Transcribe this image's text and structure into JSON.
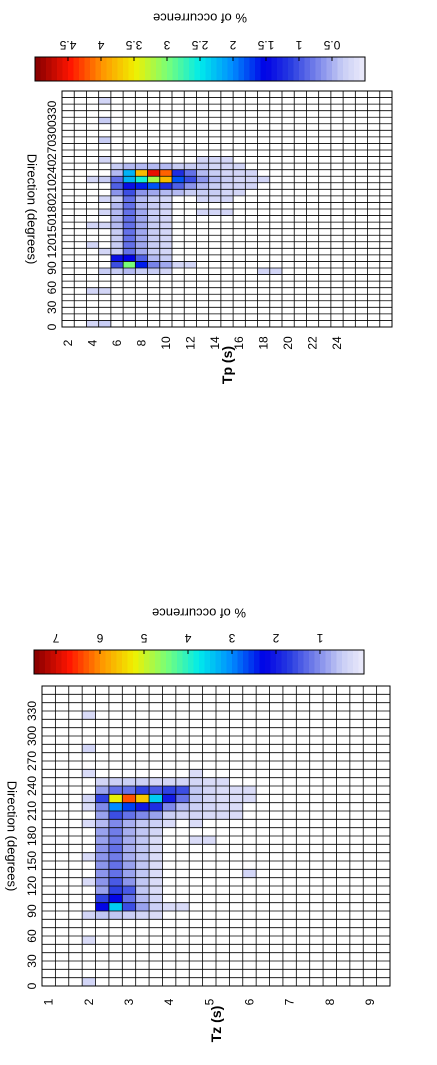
{
  "chart_data": [
    {
      "type": "heatmap",
      "id": "tp",
      "xlabel": "Direction (degrees)",
      "ylabel": "Tp (s)",
      "colorbar_label": "% of occurrence",
      "x_ticks": [
        "0",
        "30",
        "60",
        "90",
        "120",
        "150",
        "180",
        "210",
        "240",
        "270",
        "300",
        "330"
      ],
      "y_ticks": [
        "2",
        "4",
        "6",
        "8",
        "10",
        "12",
        "14",
        "16",
        "18",
        "20",
        "22",
        "24"
      ],
      "colorbar_ticks": [
        "0.5",
        "1",
        "1.5",
        "2",
        "2.5",
        "3",
        "3.5",
        "4",
        "4.5"
      ],
      "colorbar_range": [
        0,
        5
      ],
      "x_bins_deg": 10,
      "y_bins_s": 1,
      "cells": [
        [
          2,
          0,
          0.2
        ],
        [
          2,
          5,
          0.2
        ],
        [
          2,
          12,
          0.2
        ],
        [
          2,
          15,
          0.2
        ],
        [
          2,
          22,
          0.2
        ],
        [
          3,
          0,
          0.3
        ],
        [
          3,
          5,
          0.2
        ],
        [
          3,
          8,
          0.3
        ],
        [
          3,
          11,
          0.2
        ],
        [
          3,
          15,
          0.2
        ],
        [
          3,
          17,
          0.2
        ],
        [
          3,
          19,
          0.2
        ],
        [
          3,
          22,
          0.3
        ],
        [
          3,
          25,
          0.2
        ],
        [
          3,
          28,
          0.3
        ],
        [
          3,
          31,
          0.3
        ],
        [
          3,
          34,
          0.2
        ],
        [
          4,
          8,
          0.3
        ],
        [
          4,
          9,
          1.0
        ],
        [
          4,
          10,
          1.4
        ],
        [
          4,
          11,
          0.3
        ],
        [
          4,
          12,
          0.3
        ],
        [
          4,
          13,
          0.3
        ],
        [
          4,
          14,
          0.3
        ],
        [
          4,
          15,
          0.4
        ],
        [
          4,
          16,
          0.4
        ],
        [
          4,
          17,
          0.4
        ],
        [
          4,
          18,
          0.4
        ],
        [
          4,
          19,
          0.3
        ],
        [
          4,
          20,
          0.6
        ],
        [
          4,
          21,
          0.9
        ],
        [
          4,
          22,
          0.8
        ],
        [
          4,
          23,
          0.4
        ],
        [
          4,
          24,
          0.3
        ],
        [
          5,
          8,
          0.4
        ],
        [
          5,
          9,
          3.0
        ],
        [
          5,
          10,
          1.5
        ],
        [
          5,
          11,
          0.8
        ],
        [
          5,
          12,
          0.8
        ],
        [
          5,
          13,
          0.8
        ],
        [
          5,
          14,
          0.8
        ],
        [
          5,
          15,
          0.8
        ],
        [
          5,
          16,
          0.8
        ],
        [
          5,
          17,
          0.8
        ],
        [
          5,
          18,
          0.8
        ],
        [
          5,
          19,
          0.8
        ],
        [
          5,
          20,
          1.0
        ],
        [
          5,
          21,
          1.4
        ],
        [
          5,
          22,
          2.2
        ],
        [
          5,
          23,
          2.2
        ],
        [
          5,
          24,
          0.4
        ],
        [
          6,
          8,
          0.3
        ],
        [
          6,
          9,
          1.6
        ],
        [
          6,
          10,
          0.9
        ],
        [
          6,
          11,
          0.5
        ],
        [
          6,
          12,
          0.5
        ],
        [
          6,
          13,
          0.5
        ],
        [
          6,
          14,
          0.5
        ],
        [
          6,
          15,
          0.5
        ],
        [
          6,
          16,
          0.5
        ],
        [
          6,
          17,
          0.5
        ],
        [
          6,
          18,
          0.4
        ],
        [
          6,
          19,
          0.4
        ],
        [
          6,
          20,
          0.6
        ],
        [
          6,
          21,
          1.6
        ],
        [
          6,
          22,
          2.6
        ],
        [
          6,
          23,
          3.8
        ],
        [
          6,
          24,
          0.4
        ],
        [
          7,
          8,
          0.3
        ],
        [
          7,
          9,
          0.7
        ],
        [
          7,
          10,
          0.4
        ],
        [
          7,
          11,
          0.3
        ],
        [
          7,
          12,
          0.3
        ],
        [
          7,
          13,
          0.3
        ],
        [
          7,
          14,
          0.3
        ],
        [
          7,
          15,
          0.3
        ],
        [
          7,
          16,
          0.3
        ],
        [
          7,
          17,
          0.3
        ],
        [
          7,
          18,
          0.3
        ],
        [
          7,
          19,
          0.3
        ],
        [
          7,
          20,
          0.5
        ],
        [
          7,
          21,
          1.8
        ],
        [
          7,
          22,
          3.2
        ],
        [
          7,
          23,
          4.6
        ],
        [
          7,
          24,
          0.4
        ],
        [
          8,
          8,
          0.2
        ],
        [
          8,
          9,
          0.5
        ],
        [
          8,
          10,
          0.3
        ],
        [
          8,
          11,
          0.2
        ],
        [
          8,
          12,
          0.2
        ],
        [
          8,
          13,
          0.2
        ],
        [
          8,
          14,
          0.2
        ],
        [
          8,
          15,
          0.2
        ],
        [
          8,
          16,
          0.2
        ],
        [
          8,
          17,
          0.2
        ],
        [
          8,
          18,
          0.2
        ],
        [
          8,
          19,
          0.2
        ],
        [
          8,
          20,
          0.4
        ],
        [
          8,
          21,
          1.2
        ],
        [
          8,
          22,
          3.8
        ],
        [
          8,
          23,
          4.2
        ],
        [
          8,
          24,
          0.4
        ],
        [
          9,
          9,
          0.2
        ],
        [
          9,
          20,
          0.4
        ],
        [
          9,
          21,
          0.9
        ],
        [
          9,
          22,
          1.8
        ],
        [
          9,
          23,
          1.2
        ],
        [
          9,
          24,
          0.3
        ],
        [
          10,
          9,
          0.2
        ],
        [
          10,
          20,
          0.3
        ],
        [
          10,
          21,
          0.6
        ],
        [
          10,
          22,
          1.0
        ],
        [
          10,
          23,
          0.8
        ],
        [
          10,
          24,
          0.3
        ],
        [
          11,
          17,
          0.2
        ],
        [
          11,
          19,
          0.2
        ],
        [
          11,
          20,
          0.3
        ],
        [
          11,
          21,
          0.4
        ],
        [
          11,
          22,
          0.6
        ],
        [
          11,
          23,
          0.4
        ],
        [
          11,
          24,
          0.3
        ],
        [
          11,
          25,
          0.2
        ],
        [
          12,
          17,
          0.2
        ],
        [
          12,
          19,
          0.2
        ],
        [
          12,
          20,
          0.3
        ],
        [
          12,
          21,
          0.3
        ],
        [
          12,
          22,
          0.4
        ],
        [
          12,
          23,
          0.3
        ],
        [
          12,
          24,
          0.2
        ],
        [
          12,
          25,
          0.2
        ],
        [
          13,
          17,
          0.2
        ],
        [
          13,
          19,
          0.2
        ],
        [
          13,
          20,
          0.2
        ],
        [
          13,
          21,
          0.2
        ],
        [
          13,
          22,
          0.3
        ],
        [
          13,
          23,
          0.2
        ],
        [
          13,
          24,
          0.2
        ],
        [
          13,
          25,
          0.2
        ],
        [
          14,
          20,
          0.2
        ],
        [
          14,
          21,
          0.2
        ],
        [
          14,
          22,
          0.2
        ],
        [
          14,
          23,
          0.2
        ],
        [
          14,
          24,
          0.2
        ],
        [
          15,
          21,
          0.2
        ],
        [
          15,
          22,
          0.2
        ],
        [
          15,
          23,
          0.2
        ],
        [
          16,
          8,
          0.2
        ],
        [
          16,
          22,
          0.2
        ],
        [
          17,
          8,
          0.2
        ]
      ]
    },
    {
      "type": "heatmap",
      "id": "tz",
      "xlabel": "Direction (degrees)",
      "ylabel": "Tz (s)",
      "colorbar_label": "% of occurrence",
      "x_ticks": [
        "0",
        "30",
        "60",
        "90",
        "120",
        "150",
        "180",
        "210",
        "240",
        "270",
        "300",
        "330"
      ],
      "y_ticks": [
        "1",
        "2",
        "3",
        "4",
        "5",
        "6",
        "7",
        "8",
        "9"
      ],
      "colorbar_ticks": [
        "1",
        "2",
        "3",
        "4",
        "5",
        "6",
        "7"
      ],
      "colorbar_range": [
        0,
        7.5
      ],
      "x_bins_deg": 10,
      "y_bins_s": 0.5,
      "cells": [
        [
          3,
          0,
          0.3
        ],
        [
          3,
          5,
          0.2
        ],
        [
          3,
          8,
          0.3
        ],
        [
          3,
          12,
          0.2
        ],
        [
          3,
          15,
          0.2
        ],
        [
          3,
          19,
          0.2
        ],
        [
          3,
          21,
          0.2
        ],
        [
          3,
          22,
          0.3
        ],
        [
          3,
          25,
          0.2
        ],
        [
          3,
          28,
          0.3
        ],
        [
          3,
          32,
          0.2
        ],
        [
          4,
          8,
          0.5
        ],
        [
          4,
          9,
          2.2
        ],
        [
          4,
          10,
          1.6
        ],
        [
          4,
          11,
          0.8
        ],
        [
          4,
          12,
          0.9
        ],
        [
          4,
          13,
          0.9
        ],
        [
          4,
          14,
          0.9
        ],
        [
          4,
          15,
          0.9
        ],
        [
          4,
          16,
          0.9
        ],
        [
          4,
          17,
          0.8
        ],
        [
          4,
          18,
          0.8
        ],
        [
          4,
          19,
          0.6
        ],
        [
          4,
          20,
          0.8
        ],
        [
          4,
          21,
          1.0
        ],
        [
          4,
          22,
          1.6
        ],
        [
          4,
          23,
          0.8
        ],
        [
          4,
          24,
          0.3
        ],
        [
          5,
          8,
          0.5
        ],
        [
          5,
          9,
          3.5
        ],
        [
          5,
          10,
          2.2
        ],
        [
          5,
          11,
          1.6
        ],
        [
          5,
          12,
          1.4
        ],
        [
          5,
          13,
          1.2
        ],
        [
          5,
          14,
          1.2
        ],
        [
          5,
          15,
          1.1
        ],
        [
          5,
          16,
          1.2
        ],
        [
          5,
          17,
          1.1
        ],
        [
          5,
          18,
          1.1
        ],
        [
          5,
          19,
          1.0
        ],
        [
          5,
          20,
          1.5
        ],
        [
          5,
          21,
          3.0
        ],
        [
          5,
          22,
          5.2
        ],
        [
          5,
          23,
          1.2
        ],
        [
          5,
          24,
          0.4
        ],
        [
          6,
          8,
          0.4
        ],
        [
          6,
          9,
          1.5
        ],
        [
          6,
          10,
          1.2
        ],
        [
          6,
          11,
          1.4
        ],
        [
          6,
          12,
          0.9
        ],
        [
          6,
          13,
          0.8
        ],
        [
          6,
          14,
          0.8
        ],
        [
          6,
          15,
          0.7
        ],
        [
          6,
          16,
          0.7
        ],
        [
          6,
          17,
          0.7
        ],
        [
          6,
          18,
          0.7
        ],
        [
          6,
          19,
          0.7
        ],
        [
          6,
          20,
          1.2
        ],
        [
          6,
          21,
          2.6
        ],
        [
          6,
          22,
          6.4
        ],
        [
          6,
          23,
          1.2
        ],
        [
          6,
          24,
          0.4
        ],
        [
          7,
          8,
          0.3
        ],
        [
          7,
          9,
          0.8
        ],
        [
          7,
          10,
          0.6
        ],
        [
          7,
          11,
          0.5
        ],
        [
          7,
          12,
          0.5
        ],
        [
          7,
          13,
          0.5
        ],
        [
          7,
          14,
          0.5
        ],
        [
          7,
          15,
          0.5
        ],
        [
          7,
          16,
          0.5
        ],
        [
          7,
          17,
          0.5
        ],
        [
          7,
          18,
          0.5
        ],
        [
          7,
          19,
          0.5
        ],
        [
          7,
          20,
          1.0
        ],
        [
          7,
          21,
          2.0
        ],
        [
          7,
          22,
          5.6
        ],
        [
          7,
          23,
          1.6
        ],
        [
          7,
          24,
          0.4
        ],
        [
          8,
          8,
          0.2
        ],
        [
          8,
          9,
          0.4
        ],
        [
          8,
          10,
          0.3
        ],
        [
          8,
          11,
          0.2
        ],
        [
          8,
          12,
          0.2
        ],
        [
          8,
          13,
          0.2
        ],
        [
          8,
          14,
          0.2
        ],
        [
          8,
          15,
          0.2
        ],
        [
          8,
          16,
          0.2
        ],
        [
          8,
          17,
          0.2
        ],
        [
          8,
          18,
          0.3
        ],
        [
          8,
          19,
          0.4
        ],
        [
          8,
          20,
          0.8
        ],
        [
          8,
          21,
          1.8
        ],
        [
          8,
          22,
          3.5
        ],
        [
          8,
          23,
          1.4
        ],
        [
          8,
          24,
          0.3
        ],
        [
          9,
          9,
          0.2
        ],
        [
          9,
          19,
          0.2
        ],
        [
          9,
          20,
          0.4
        ],
        [
          9,
          21,
          1.0
        ],
        [
          9,
          22,
          2.0
        ],
        [
          9,
          23,
          1.6
        ],
        [
          9,
          24,
          0.3
        ],
        [
          10,
          9,
          0.2
        ],
        [
          10,
          20,
          0.3
        ],
        [
          10,
          21,
          0.6
        ],
        [
          10,
          22,
          1.2
        ],
        [
          10,
          23,
          1.5
        ],
        [
          10,
          24,
          0.3
        ],
        [
          11,
          17,
          0.2
        ],
        [
          11,
          19,
          0.2
        ],
        [
          11,
          20,
          0.3
        ],
        [
          11,
          21,
          0.4
        ],
        [
          11,
          22,
          0.5
        ],
        [
          11,
          23,
          0.5
        ],
        [
          11,
          24,
          0.3
        ],
        [
          11,
          25,
          0.2
        ],
        [
          12,
          17,
          0.2
        ],
        [
          12,
          20,
          0.2
        ],
        [
          12,
          21,
          0.3
        ],
        [
          12,
          22,
          0.3
        ],
        [
          12,
          23,
          0.3
        ],
        [
          12,
          24,
          0.2
        ],
        [
          13,
          20,
          0.2
        ],
        [
          13,
          21,
          0.2
        ],
        [
          13,
          22,
          0.2
        ],
        [
          13,
          23,
          0.2
        ],
        [
          13,
          24,
          0.2
        ],
        [
          14,
          20,
          0.2
        ],
        [
          14,
          21,
          0.2
        ],
        [
          14,
          22,
          0.2
        ],
        [
          14,
          23,
          0.2
        ],
        [
          15,
          13,
          0.3
        ],
        [
          15,
          22,
          0.2
        ],
        [
          15,
          23,
          0.2
        ]
      ]
    }
  ]
}
